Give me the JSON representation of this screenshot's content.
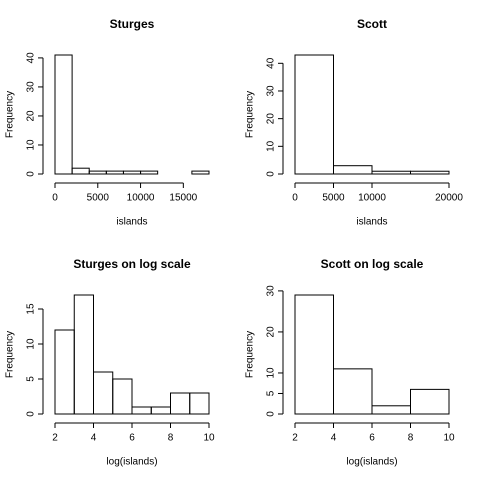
{
  "chart_data": [
    {
      "type": "histogram",
      "title": "Sturges",
      "xlabel": "islands",
      "ylabel": "Frequency",
      "bins": [
        0,
        2000,
        4000,
        6000,
        8000,
        10000,
        12000,
        14000,
        16000,
        18000
      ],
      "values": [
        41,
        2,
        1,
        1,
        1,
        1,
        0,
        0,
        1
      ],
      "xlim": [
        0,
        18000
      ],
      "ylim": [
        0,
        41
      ],
      "xticks": [
        0,
        5000,
        10000,
        15000
      ],
      "yticks": [
        0,
        10,
        20,
        30,
        40
      ]
    },
    {
      "type": "histogram",
      "title": "Scott",
      "xlabel": "islands",
      "ylabel": "Frequency",
      "bins": [
        0,
        5000,
        10000,
        15000,
        20000
      ],
      "values": [
        43,
        3,
        1,
        1
      ],
      "xlim": [
        0,
        20000
      ],
      "ylim": [
        0,
        43
      ],
      "xticks": [
        0,
        5000,
        10000,
        20000
      ],
      "yticks": [
        0,
        10,
        20,
        30,
        40
      ]
    },
    {
      "type": "histogram",
      "title": "Sturges on log scale",
      "xlabel": "log(islands)",
      "ylabel": "Frequency",
      "bins": [
        2,
        3,
        4,
        5,
        6,
        7,
        8,
        9,
        10
      ],
      "values": [
        12,
        17,
        6,
        5,
        1,
        1,
        3,
        3
      ],
      "xlim": [
        2,
        10
      ],
      "ylim": [
        0,
        17
      ],
      "xticks": [
        2,
        4,
        6,
        8,
        10
      ],
      "yticks": [
        0,
        5,
        10,
        15
      ]
    },
    {
      "type": "histogram",
      "title": "Scott on log scale",
      "xlabel": "log(islands)",
      "ylabel": "Frequency",
      "bins": [
        2,
        4,
        6,
        8,
        10
      ],
      "values": [
        29,
        11,
        2,
        6
      ],
      "xlim": [
        2,
        10
      ],
      "ylim": [
        0,
        29
      ],
      "xticks": [
        2,
        4,
        6,
        8,
        10
      ],
      "yticks": [
        0,
        5,
        10,
        20,
        30
      ]
    }
  ]
}
